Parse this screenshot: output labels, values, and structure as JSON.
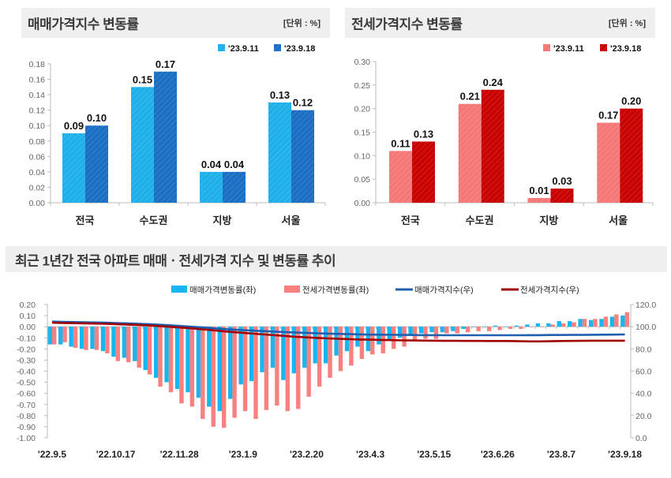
{
  "chart_data": [
    {
      "type": "bar",
      "title": "매매가격지수 변동률",
      "unit": "[단위 : %]",
      "categories": [
        "전국",
        "수도권",
        "지방",
        "서울"
      ],
      "series": [
        {
          "name": "'23.9.11",
          "values": [
            0.09,
            0.15,
            0.04,
            0.13
          ],
          "labels": [
            "0.09",
            "0.15",
            "0.04",
            "0.13"
          ],
          "color": "#1fb0ea"
        },
        {
          "name": "'23.9.18",
          "values": [
            0.1,
            0.17,
            0.04,
            0.12
          ],
          "labels": [
            "0.10",
            "0.17",
            "0.04",
            "0.12"
          ],
          "color": "#1a6ec4"
        }
      ],
      "ylim": [
        0,
        0.18
      ],
      "yticks": [
        "0.00",
        "0.02",
        "0.04",
        "0.06",
        "0.08",
        "0.10",
        "0.12",
        "0.14",
        "0.16",
        "0.18"
      ],
      "legend": "top-right",
      "grid": false
    },
    {
      "type": "bar",
      "title": "전세가격지수 변동률",
      "unit": "[단위 : %]",
      "categories": [
        "전국",
        "수도권",
        "지방",
        "서울"
      ],
      "series": [
        {
          "name": "'23.9.11",
          "values": [
            0.11,
            0.21,
            0.01,
            0.17
          ],
          "labels": [
            "0.11",
            "0.21",
            "0.01",
            "0.17"
          ],
          "color": "#f47878"
        },
        {
          "name": "'23.9.18",
          "values": [
            0.13,
            0.24,
            0.03,
            0.2
          ],
          "labels": [
            "0.13",
            "0.24",
            "0.03",
            "0.20"
          ],
          "color": "#c80000"
        }
      ],
      "ylim": [
        0,
        0.3
      ],
      "yticks": [
        "0.00",
        "0.05",
        "0.10",
        "0.15",
        "0.20",
        "0.25",
        "0.30"
      ],
      "legend": "top-right",
      "grid": false
    },
    {
      "type": "bar+line",
      "title": "최근 1년간 전국 아파트 매매ㆍ전세가격 지수 및 변동률 추이",
      "x_tick_labels": [
        "'22.9.5",
        "'22.10.17",
        "'22.11.28",
        "'23.1.9",
        "'23.2.20",
        "'23.4.3",
        "'23.5.15",
        "'23.6.26",
        "'23.8.7",
        "'23.9.18"
      ],
      "ylim_left": [
        -1.0,
        0.2
      ],
      "yticks_left": [
        "0.20",
        "0.10",
        "0.00",
        "-0.10",
        "-0.20",
        "-0.30",
        "-0.40",
        "-0.50",
        "-0.60",
        "-0.70",
        "-0.80",
        "-0.90",
        "-1.00"
      ],
      "ylim_right": [
        0,
        120
      ],
      "yticks_right": [
        "120.0",
        "100.0",
        "80.0",
        "60.0",
        "40.0",
        "20.0",
        "0.0"
      ],
      "legend": "top",
      "grid": false,
      "series": [
        {
          "name": "매매가격변동률(좌)",
          "kind": "bar",
          "axis": "left",
          "color": "#17b6f0",
          "values": [
            -0.16,
            -0.16,
            -0.18,
            -0.2,
            -0.2,
            -0.22,
            -0.27,
            -0.28,
            -0.31,
            -0.39,
            -0.46,
            -0.5,
            -0.56,
            -0.59,
            -0.64,
            -0.72,
            -0.76,
            -0.65,
            -0.52,
            -0.49,
            -0.41,
            -0.37,
            -0.48,
            -0.42,
            -0.37,
            -0.33,
            -0.33,
            -0.26,
            -0.22,
            -0.18,
            -0.22,
            -0.16,
            -0.12,
            -0.1,
            -0.08,
            -0.06,
            -0.05,
            -0.05,
            -0.04,
            -0.02,
            0.0,
            0.0,
            0.01,
            0.0,
            0.01,
            0.02,
            0.03,
            0.03,
            0.05,
            0.05,
            0.07,
            0.06,
            0.07,
            0.09,
            0.1
          ]
        },
        {
          "name": "전세가격변동률(좌)",
          "kind": "bar",
          "axis": "left",
          "color": "#f98080",
          "values": [
            -0.16,
            -0.14,
            -0.19,
            -0.21,
            -0.21,
            -0.24,
            -0.31,
            -0.32,
            -0.37,
            -0.43,
            -0.54,
            -0.59,
            -0.69,
            -0.72,
            -0.83,
            -0.9,
            -0.91,
            -0.82,
            -0.76,
            -0.83,
            -0.75,
            -0.71,
            -0.76,
            -0.74,
            -0.63,
            -0.54,
            -0.46,
            -0.4,
            -0.35,
            -0.29,
            -0.25,
            -0.24,
            -0.2,
            -0.18,
            -0.12,
            -0.11,
            -0.11,
            -0.06,
            -0.06,
            -0.05,
            -0.04,
            -0.04,
            -0.03,
            -0.02,
            -0.02,
            0.0,
            0.0,
            0.02,
            0.03,
            0.04,
            0.07,
            0.07,
            0.09,
            0.11,
            0.13
          ]
        },
        {
          "name": "매매가격지수(우)",
          "kind": "line",
          "axis": "right",
          "color": "#1f5fb0",
          "values": [
            104.6,
            104.4,
            104.2,
            104.0,
            103.8,
            103.6,
            103.3,
            103.0,
            102.7,
            102.3,
            101.8,
            101.3,
            100.7,
            100.1,
            99.5,
            98.8,
            98.0,
            97.4,
            96.9,
            96.4,
            96.0,
            95.6,
            95.1,
            94.7,
            94.4,
            94.1,
            93.8,
            93.5,
            93.3,
            93.1,
            92.9,
            92.8,
            92.7,
            92.6,
            92.5,
            92.4,
            92.4,
            92.3,
            92.3,
            92.3,
            92.3,
            92.3,
            92.3,
            92.3,
            92.3,
            92.4,
            92.4,
            92.5,
            92.5,
            92.6,
            92.6,
            92.7,
            92.8,
            92.9,
            93.0
          ]
        },
        {
          "name": "전세가격지수(우)",
          "kind": "line",
          "axis": "right",
          "color": "#a00000",
          "values": [
            103.6,
            103.4,
            103.2,
            103.0,
            102.8,
            102.6,
            102.3,
            102.0,
            101.6,
            101.2,
            100.6,
            100.0,
            99.3,
            98.6,
            97.8,
            96.9,
            96.0,
            95.2,
            94.5,
            93.7,
            93.0,
            92.3,
            91.6,
            90.9,
            90.4,
            89.9,
            89.5,
            89.1,
            88.8,
            88.5,
            88.3,
            88.1,
            87.9,
            87.7,
            87.6,
            87.5,
            87.4,
            87.3,
            87.3,
            87.2,
            87.2,
            87.1,
            87.1,
            87.1,
            86.9,
            86.8,
            86.8,
            86.9,
            87.1,
            87.2,
            87.3,
            87.4,
            87.4,
            87.4,
            87.4
          ]
        }
      ]
    }
  ]
}
